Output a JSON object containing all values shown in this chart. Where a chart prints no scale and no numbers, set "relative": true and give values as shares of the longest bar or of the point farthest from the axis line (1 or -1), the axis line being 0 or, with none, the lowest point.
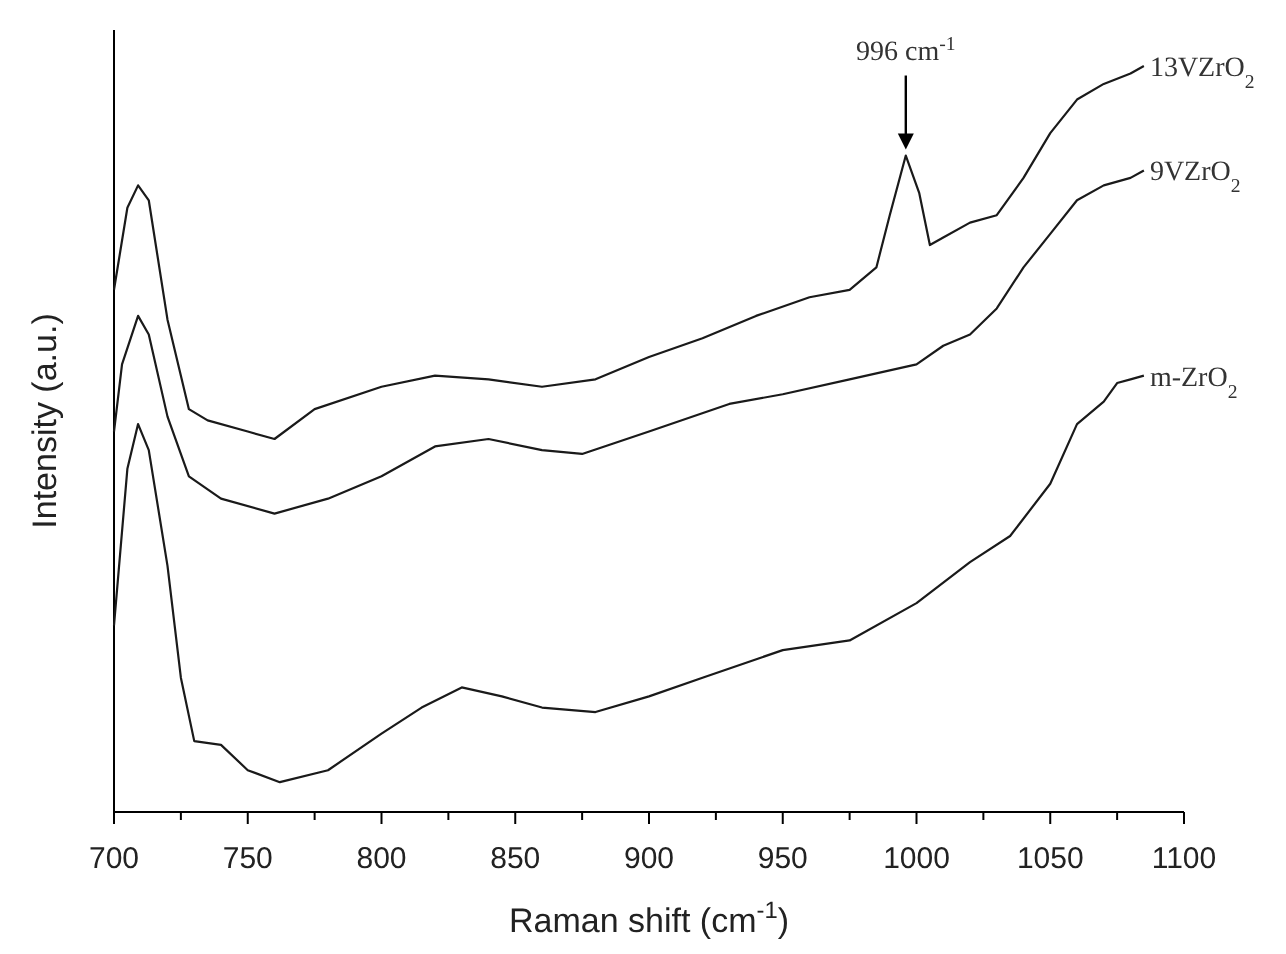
{
  "chart_data": {
    "type": "line",
    "relative": true,
    "xlabel": "Raman shift (cm$^{-1}$)",
    "ylabel": "Intensity (a.u.)",
    "xlim": [
      700,
      1100
    ],
    "xticks": [
      700,
      {
        "value": 725,
        "label": null
      },
      750,
      {
        "value": 775,
        "label": null
      },
      800,
      {
        "value": 825,
        "label": null
      },
      850,
      {
        "value": 875,
        "label": null
      },
      900,
      {
        "value": 925,
        "label": null
      },
      950,
      {
        "value": 975,
        "label": null
      },
      1000,
      {
        "value": 1025,
        "label": null
      },
      1050,
      {
        "value": 1075,
        "label": null
      },
      1100
    ],
    "grid": false,
    "marker": "none",
    "line_style": "solid",
    "annotations": [
      {
        "text": "996 cm$^{-1}$",
        "x": 996,
        "y": 0.88
      }
    ],
    "series": [
      {
        "name": "13VZrO$_{2}$",
        "color": "#1a1a1a",
        "x": [
          700,
          705,
          709,
          713,
          720,
          728,
          735,
          750,
          760,
          775,
          800,
          820,
          840,
          860,
          880,
          900,
          920,
          940,
          960,
          975,
          985,
          990,
          996,
          1001,
          1005,
          1010,
          1020,
          1030,
          1040,
          1050,
          1060,
          1070,
          1080,
          1085
        ],
        "values": [
          0.7,
          0.81,
          0.84,
          0.82,
          0.66,
          0.54,
          0.525,
          0.51,
          0.5,
          0.54,
          0.57,
          0.585,
          0.58,
          0.57,
          0.58,
          0.61,
          0.635,
          0.665,
          0.69,
          0.7,
          0.73,
          0.8,
          0.88,
          0.83,
          0.76,
          0.77,
          0.79,
          0.8,
          0.85,
          0.91,
          0.955,
          0.976,
          0.99,
          1.0
        ]
      },
      {
        "name": "9VZrO$_{2}$",
        "color": "#1a1a1a",
        "x": [
          700,
          703,
          709,
          713,
          720,
          728,
          740,
          760,
          780,
          800,
          820,
          840,
          860,
          875,
          900,
          930,
          950,
          975,
          1000,
          1010,
          1020,
          1030,
          1040,
          1050,
          1060,
          1070,
          1080,
          1085
        ],
        "values": [
          0.51,
          0.6,
          0.665,
          0.64,
          0.53,
          0.45,
          0.42,
          0.4,
          0.42,
          0.45,
          0.49,
          0.5,
          0.485,
          0.48,
          0.51,
          0.547,
          0.56,
          0.58,
          0.6,
          0.625,
          0.64,
          0.675,
          0.73,
          0.775,
          0.82,
          0.84,
          0.85,
          0.86
        ]
      },
      {
        "name": "m-ZrO$_{2}$",
        "color": "#1a1a1a",
        "x": [
          700,
          705,
          709,
          713,
          720,
          725,
          730,
          740,
          750,
          762,
          780,
          800,
          815,
          830,
          845,
          860,
          880,
          900,
          920,
          950,
          975,
          1000,
          1020,
          1035,
          1050,
          1060,
          1070,
          1075,
          1080,
          1085
        ],
        "values": [
          0.25,
          0.46,
          0.52,
          0.485,
          0.33,
          0.18,
          0.095,
          0.09,
          0.056,
          0.04,
          0.056,
          0.105,
          0.14,
          0.167,
          0.155,
          0.14,
          0.134,
          0.155,
          0.18,
          0.217,
          0.23,
          0.28,
          0.335,
          0.37,
          0.44,
          0.52,
          0.55,
          0.575,
          0.58,
          0.585
        ]
      }
    ]
  }
}
